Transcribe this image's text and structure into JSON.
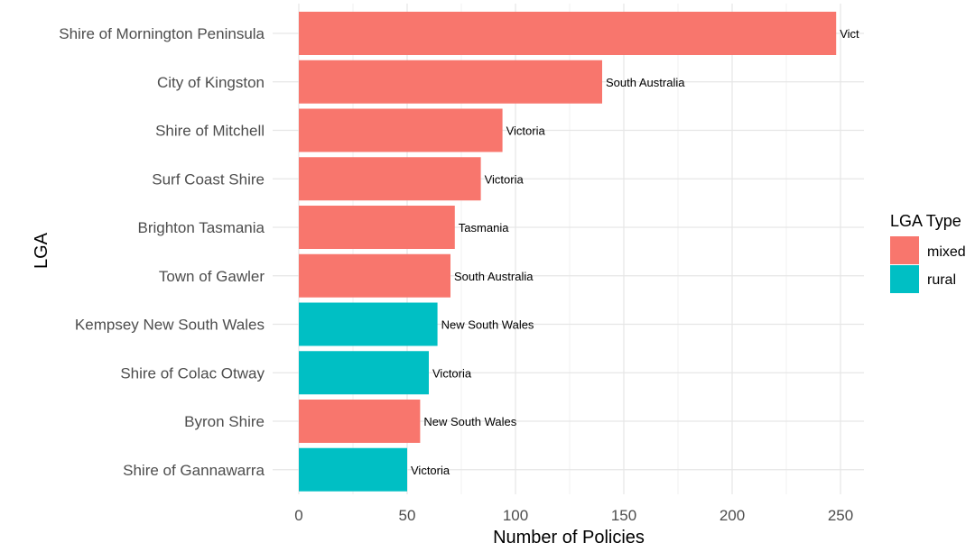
{
  "chart_data": {
    "type": "bar",
    "orientation": "horizontal",
    "title": "",
    "xlabel": "Number of Policies",
    "ylabel": "LGA",
    "xlim": [
      0,
      260
    ],
    "x_ticks": [
      0,
      50,
      100,
      150,
      200,
      250
    ],
    "grid": true,
    "legend": {
      "title": "LGA Type",
      "position": "right",
      "entries": [
        {
          "name": "mixed",
          "color": "#F8766D"
        },
        {
          "name": "rural",
          "color": "#00BFC4"
        }
      ]
    },
    "bars": [
      {
        "category": "Shire of Mornington Peninsula",
        "value": 248,
        "type": "mixed",
        "label": "Vict"
      },
      {
        "category": "City of Kingston",
        "value": 140,
        "type": "mixed",
        "label": "South Australia"
      },
      {
        "category": "Shire of Mitchell",
        "value": 94,
        "type": "mixed",
        "label": "Victoria"
      },
      {
        "category": "Surf Coast Shire",
        "value": 84,
        "type": "mixed",
        "label": "Victoria"
      },
      {
        "category": "Brighton Tasmania",
        "value": 72,
        "type": "mixed",
        "label": "Tasmania"
      },
      {
        "category": "Town of Gawler",
        "value": 70,
        "type": "mixed",
        "label": "South Australia"
      },
      {
        "category": "Kempsey New South Wales",
        "value": 64,
        "type": "rural",
        "label": "New South Wales"
      },
      {
        "category": "Shire of Colac Otway",
        "value": 60,
        "type": "rural",
        "label": "Victoria"
      },
      {
        "category": "Byron Shire",
        "value": 56,
        "type": "mixed",
        "label": "New South Wales"
      },
      {
        "category": "Shire of Gannawarra",
        "value": 50,
        "type": "rural",
        "label": "Victoria"
      }
    ]
  }
}
